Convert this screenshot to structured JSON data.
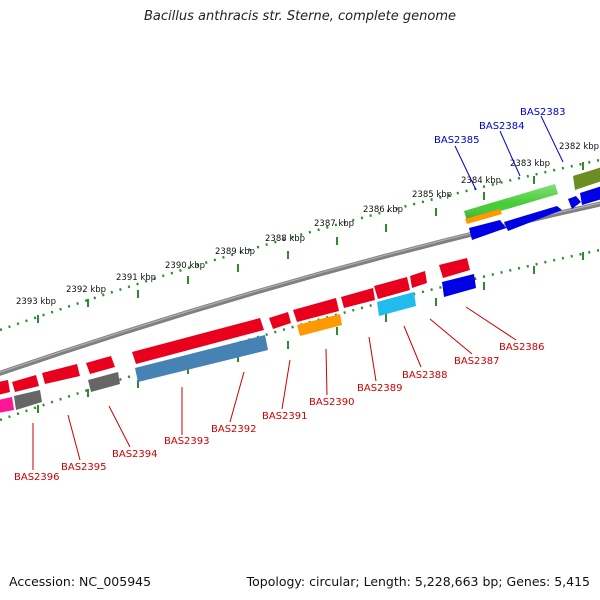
{
  "title": "Bacillus anthracis str. Sterne, complete genome",
  "footer": {
    "accession": "Accession: NC_005945",
    "topology": "Topology: circular; Length: 5,228,663 bp; Genes: 5,415"
  },
  "scale_labels": [
    "2382 kbp",
    "2383 kbp",
    "2384 kbp",
    "2385 kbp",
    "2386 kbp",
    "2387 kbp",
    "2388 kbp",
    "2389 kbp",
    "2390 kbp",
    "2391 kbp",
    "2392 kbp",
    "2393 kbp"
  ],
  "gene_labels": [
    "BAS2383",
    "BAS2384",
    "BAS2385",
    "BAS2386",
    "BAS2387",
    "BAS2388",
    "BAS2389",
    "BAS2390",
    "BAS2391",
    "BAS2392",
    "BAS2393",
    "BAS2394",
    "BAS2395",
    "BAS2396"
  ],
  "colors": {
    "backbone": "#808080",
    "scale_dots": "#2e8b2e",
    "forward_label": "#0000cc",
    "reverse_label": "#cc0000",
    "gene_red": "#e8001c",
    "gene_blue": "#0000e6",
    "gene_green": "#44cc33",
    "gene_olive": "#6b8e23",
    "gene_orange": "#ff9900",
    "gene_gray": "#666666",
    "gene_steelblue": "#4682b4",
    "gene_cyan": "#22bbee",
    "gene_pink": "#ff1493"
  }
}
